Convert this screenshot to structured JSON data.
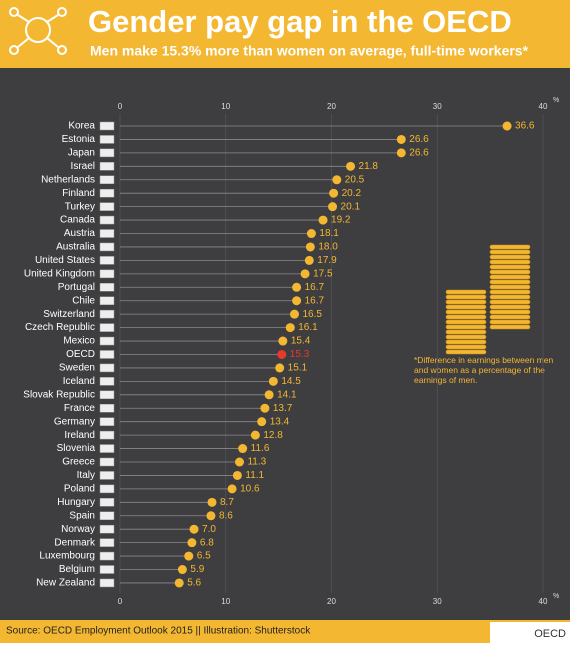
{
  "chart_data": {
    "type": "lollipop",
    "title": "Gender pay gap in the OECD",
    "subtitle": "Men make 15.3% more than women on average, full-time workers*",
    "x_unit": "%",
    "categories": [
      "Korea",
      "Estonia",
      "Japan",
      "Israel",
      "Netherlands",
      "Finland",
      "Turkey",
      "Canada",
      "Austria",
      "Australia",
      "United States",
      "United Kingdom",
      "Portugal",
      "Chile",
      "Switzerland",
      "Czech Republic",
      "Mexico",
      "OECD",
      "Sweden",
      "Iceland",
      "Slovak Republic",
      "France",
      "Germany",
      "Ireland",
      "Slovenia",
      "Greece",
      "Italy",
      "Poland",
      "Hungary",
      "Spain",
      "Norway",
      "Denmark",
      "Luxembourg",
      "Belgium",
      "New Zealand"
    ],
    "values": [
      36.6,
      26.6,
      26.6,
      21.8,
      20.5,
      20.2,
      20.1,
      19.2,
      18.1,
      18.0,
      17.9,
      17.5,
      16.7,
      16.7,
      16.5,
      16.1,
      15.4,
      15.3,
      15.1,
      14.5,
      14.1,
      13.7,
      13.4,
      12.8,
      11.6,
      11.3,
      11.1,
      10.6,
      8.7,
      8.6,
      7.0,
      6.8,
      6.5,
      5.9,
      5.6
    ],
    "value_labels": [
      "36.6",
      "26.6",
      "26.6",
      "21.8",
      "20.5",
      "20.2",
      "20.1",
      "19.2",
      "18.1",
      "18.0",
      "17.9",
      "17.5",
      "16.7",
      "16.7",
      "16.5",
      "16.1",
      "15.4",
      "15.3",
      "15.1",
      "14.5",
      "14.1",
      "13.7",
      "13.4",
      "12.8",
      "11.6",
      "11.3",
      "11.1",
      "10.6",
      "8.7",
      "8.6",
      "7.0",
      "6.8",
      "6.5",
      "5.9",
      "5.6"
    ],
    "colors": [
      "#f4b731",
      "#f4b731",
      "#f4b731",
      "#f4b731",
      "#f4b731",
      "#f4b731",
      "#f4b731",
      "#f4b731",
      "#f4b731",
      "#f4b731",
      "#f4b731",
      "#f4b731",
      "#f4b731",
      "#f4b731",
      "#f4b731",
      "#f4b731",
      "#f4b731",
      "#e8392b",
      "#f4b731",
      "#f4b731",
      "#f4b731",
      "#f4b731",
      "#f4b731",
      "#f4b731",
      "#f4b731",
      "#f4b731",
      "#f4b731",
      "#f4b731",
      "#f4b731",
      "#f4b731",
      "#f4b731",
      "#f4b731",
      "#f4b731",
      "#f4b731",
      "#f4b731"
    ],
    "xlim": [
      0,
      40
    ],
    "xticks": [
      0,
      10,
      20,
      30,
      40
    ],
    "grid": true,
    "footnote": "*Difference in earnings between men and women as a percentage of the earnings of men.",
    "source": "Source: OECD Employment Outlook 2015 || Illustration: Shutterstock",
    "logo": "OECD"
  }
}
